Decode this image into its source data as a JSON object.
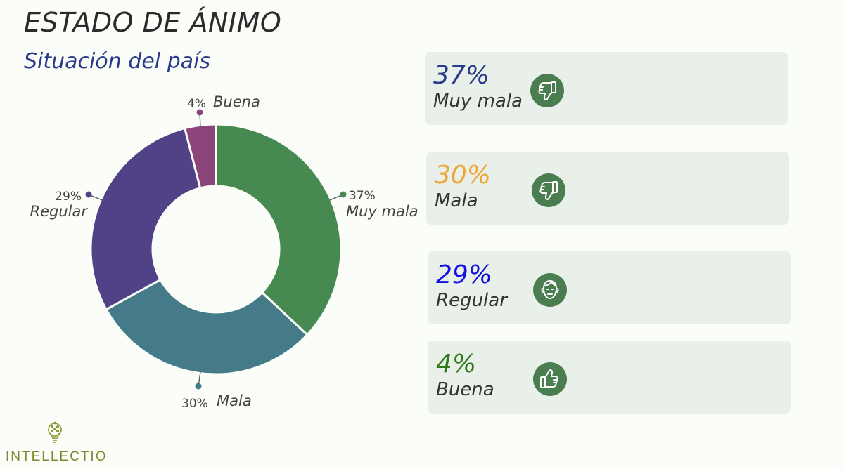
{
  "header": {
    "title": "ESTADO DE ÁNIMO",
    "subtitle": "Situación del país"
  },
  "chart_data": {
    "type": "pie",
    "donut": true,
    "title": "Situación del país",
    "categories": [
      "Muy mala",
      "Mala",
      "Regular",
      "Buena"
    ],
    "values": [
      37,
      30,
      29,
      4
    ],
    "unit": "%",
    "colors": [
      "#468a52",
      "#457b89",
      "#514187",
      "#8b457b"
    ],
    "data_labels": [
      "37%",
      "30%",
      "29%",
      "4%"
    ]
  },
  "cards": [
    {
      "pct": "37%",
      "label": "Muy mala",
      "pct_color": "#2a3a8c",
      "icon": "thumbs-down-icon"
    },
    {
      "pct": "30%",
      "label": "Mala",
      "pct_color": "#f0a53a",
      "icon": "thumbs-down-icon"
    },
    {
      "pct": "29%",
      "label": "Regular",
      "pct_color": "#1414e0",
      "icon": "neutral-face-icon"
    },
    {
      "pct": "4%",
      "label": "Buena",
      "pct_color": "#2f7a18",
      "icon": "thumbs-up-icon"
    }
  ],
  "logo": {
    "text": "INTELLECTIO",
    "icon": "lightbulb-network-icon"
  }
}
